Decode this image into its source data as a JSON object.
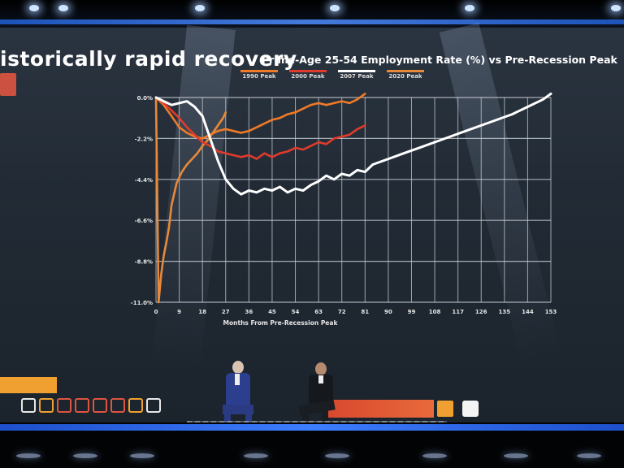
{
  "slide": {
    "title": "istorically rapid recovery",
    "subtitle": "Prime-Age 25-54 Employment Rate (%) vs Pre-Recession Peak"
  },
  "colors": {
    "screen": "#242d37",
    "accent_blue": "#3d7dff",
    "s1990": "#f07a28",
    "s2000": "#e03a2c",
    "s2007": "#ffffff",
    "s2020": "#e8893a"
  },
  "chart_data": {
    "type": "line",
    "title": "Prime-Age 25-54 Employment Rate (%) vs Pre-Recession Peak",
    "xlabel": "Months From Pre-Recession Peak",
    "ylabel": "",
    "x_ticks": [
      "0",
      "9",
      "18",
      "27",
      "36",
      "45",
      "54",
      "63",
      "72",
      "81",
      "90",
      "99",
      "108",
      "117",
      "126",
      "135",
      "144",
      "153"
    ],
    "y_ticks": [
      "0.0%",
      "-2.2%",
      "-4.4%",
      "-6.6%",
      "-8.8%",
      "-11.0%"
    ],
    "xlim": [
      0,
      153
    ],
    "ylim": [
      -11.0,
      0.0
    ],
    "grid": true,
    "legend_position": "top",
    "series": [
      {
        "name": "1990 Peak",
        "color": "#f07a28",
        "x": [
          0,
          3,
          6,
          9,
          12,
          15,
          18,
          21,
          24,
          27,
          30,
          33,
          36,
          39,
          42,
          45,
          48,
          51,
          54,
          57,
          60,
          63,
          66,
          69,
          72,
          75,
          78,
          81
        ],
        "y": [
          0,
          -0.4,
          -1.0,
          -1.6,
          -1.9,
          -2.1,
          -2.2,
          -2.0,
          -1.8,
          -1.7,
          -1.8,
          -1.9,
          -1.8,
          -1.6,
          -1.4,
          -1.2,
          -1.1,
          -0.9,
          -0.8,
          -0.6,
          -0.4,
          -0.3,
          -0.4,
          -0.3,
          -0.2,
          -0.3,
          -0.1,
          0.2
        ]
      },
      {
        "name": "2000 Peak",
        "color": "#e03a2c",
        "x": [
          0,
          3,
          6,
          9,
          12,
          15,
          18,
          21,
          24,
          27,
          30,
          33,
          36,
          39,
          42,
          45,
          48,
          51,
          54,
          57,
          60,
          63,
          66,
          69,
          72,
          75,
          78,
          81
        ],
        "y": [
          0,
          -0.3,
          -0.7,
          -1.1,
          -1.6,
          -2.0,
          -2.4,
          -2.6,
          -2.9,
          -3.0,
          -3.1,
          -3.2,
          -3.1,
          -3.3,
          -3.0,
          -3.2,
          -3.0,
          -2.9,
          -2.7,
          -2.8,
          -2.6,
          -2.4,
          -2.5,
          -2.2,
          -2.1,
          -2.0,
          -1.7,
          -1.5
        ]
      },
      {
        "name": "2007 Peak",
        "color": "#ffffff",
        "x": [
          0,
          3,
          6,
          9,
          12,
          15,
          18,
          21,
          24,
          27,
          30,
          33,
          36,
          39,
          42,
          45,
          48,
          51,
          54,
          57,
          60,
          63,
          66,
          69,
          72,
          75,
          78,
          81,
          84,
          90,
          96,
          102,
          108,
          114,
          120,
          126,
          132,
          138,
          144,
          150,
          153
        ],
        "y": [
          0,
          -0.2,
          -0.4,
          -0.3,
          -0.2,
          -0.5,
          -1.0,
          -2.2,
          -3.4,
          -4.4,
          -4.9,
          -5.2,
          -5.0,
          -5.1,
          -4.9,
          -5.0,
          -4.8,
          -5.1,
          -4.9,
          -5.0,
          -4.7,
          -4.5,
          -4.2,
          -4.4,
          -4.1,
          -4.2,
          -3.9,
          -4.0,
          -3.6,
          -3.3,
          -3.0,
          -2.7,
          -2.4,
          -2.1,
          -1.8,
          -1.5,
          -1.2,
          -0.9,
          -0.5,
          -0.1,
          0.2
        ]
      },
      {
        "name": "2020 Peak",
        "color": "#e8893a",
        "x": [
          0,
          1,
          2,
          3,
          4,
          5,
          6,
          7,
          8,
          9,
          10,
          12,
          14,
          16,
          18,
          20,
          22,
          24,
          26,
          27
        ],
        "y": [
          0,
          -11.0,
          -9.5,
          -8.5,
          -7.8,
          -7.0,
          -5.8,
          -5.2,
          -4.6,
          -4.3,
          -4.0,
          -3.6,
          -3.3,
          -3.0,
          -2.6,
          -2.3,
          -1.9,
          -1.5,
          -1.1,
          -0.8
        ]
      }
    ]
  }
}
